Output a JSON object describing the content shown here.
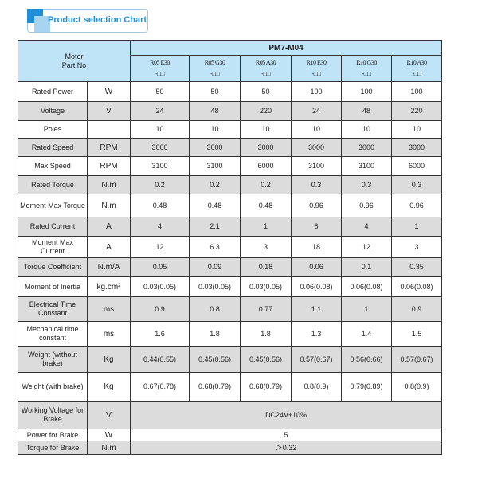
{
  "badge": {
    "title": "Product selection Chart"
  },
  "table": {
    "series": "PM7-M04",
    "header_label": "Motor\nPart No",
    "part_numbers": [
      {
        "line1": "R05 E30",
        "line2": "-□□"
      },
      {
        "line1": "R05 G30",
        "line2": "-□□"
      },
      {
        "line1": "R05 A30",
        "line2": "-□□"
      },
      {
        "line1": "R10 E30",
        "line2": "-□□"
      },
      {
        "line1": "R10 G30",
        "line2": "-□□"
      },
      {
        "line1": "R10 A30",
        "line2": "-□□"
      }
    ],
    "rows": [
      {
        "label": "Rated Power",
        "unit": "W",
        "values": [
          "50",
          "50",
          "50",
          "100",
          "100",
          "100"
        ],
        "h": 25
      },
      {
        "label": "Voltage",
        "unit": "V",
        "values": [
          "24",
          "48",
          "220",
          "24",
          "48",
          "220"
        ],
        "h": 24
      },
      {
        "label": "Poles",
        "unit": "",
        "values": [
          "10",
          "10",
          "10",
          "10",
          "10",
          "10"
        ],
        "h": 22
      },
      {
        "label": "Rated Speed",
        "unit": "RPM",
        "values": [
          "3000",
          "3000",
          "3000",
          "3000",
          "3000",
          "3000"
        ],
        "h": 23
      },
      {
        "label": "Max Speed",
        "unit": "RPM",
        "values": [
          "3100",
          "3100",
          "6000",
          "3100",
          "3100",
          "6000"
        ],
        "h": 24
      },
      {
        "label": "Rated Torque",
        "unit": "N.m",
        "values": [
          "0.2",
          "0.2",
          "0.2",
          "0.3",
          "0.3",
          "0.3"
        ],
        "h": 23
      },
      {
        "label": "Moment Max Torque",
        "unit": "N.m",
        "values": [
          "0.48",
          "0.48",
          "0.48",
          "0.96",
          "0.96",
          "0.96"
        ],
        "h": 29
      },
      {
        "label": "Rated Current",
        "unit": "A",
        "values": [
          "4",
          "2.1",
          "1",
          "6",
          "4",
          "1"
        ],
        "h": 24
      },
      {
        "label": "Moment Max Current",
        "unit": "A",
        "values": [
          "12",
          "6.3",
          "3",
          "18",
          "12",
          "3"
        ],
        "h": 27
      },
      {
        "label": "Torque Coefficient",
        "unit": "N.m/A",
        "values": [
          "0.05",
          "0.09",
          "0.18",
          "0.06",
          "0.1",
          "0.35"
        ],
        "h": 24
      },
      {
        "label": "Moment of Inertia",
        "unit": "kg.cm²",
        "values": [
          "0.03(0.05)",
          "0.03(0.05)",
          "0.03(0.05)",
          "0.06(0.08)",
          "0.06(0.08)",
          "0.06(0.08)"
        ],
        "h": 25
      },
      {
        "label": "Electrical Time Constant",
        "unit": "ms",
        "values": [
          "0.9",
          "0.8",
          "0.77",
          "1.1",
          "1",
          "0.9"
        ],
        "h": 31
      },
      {
        "label": "Mechanical time constant",
        "unit": "ms",
        "values": [
          "1.6",
          "1.8",
          "1.8",
          "1.3",
          "1.4",
          "1.5"
        ],
        "h": 31
      },
      {
        "label": "Weight (without brake)",
        "unit": "Kg",
        "values": [
          "0.44(0.55)",
          "0.45(0.56)",
          "0.45(0.56)",
          "0.57(0.67)",
          "0.56(0.66)",
          "0.57(0.67)"
        ],
        "h": 33
      },
      {
        "label": "Weight (with brake)",
        "unit": "Kg",
        "values": [
          "0.67(0.78)",
          "0.68(0.79)",
          "0.68(0.79)",
          "0.8(0.9)",
          "0.79(0.89)",
          "0.8(0.9)"
        ],
        "h": 36
      },
      {
        "label": "Working Voltage for Brake",
        "unit": "V",
        "merged": "DC24V±10%",
        "h": 35
      },
      {
        "label": "Power for Brake",
        "unit": "W",
        "merged": "5",
        "h": 15
      },
      {
        "label": "Torque for Brake",
        "unit": "N.m",
        "merged": "＞0.32",
        "h": 17
      }
    ]
  }
}
